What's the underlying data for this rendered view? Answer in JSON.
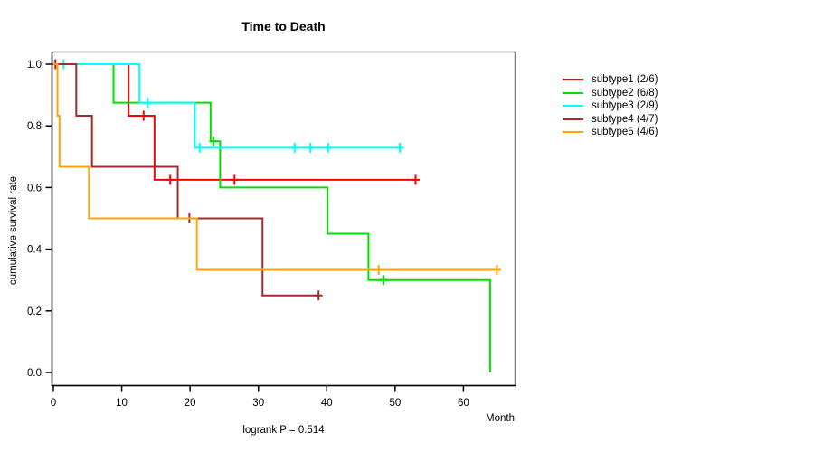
{
  "title": "Time to Death",
  "x_axis": {
    "label": "Month",
    "ticks": [
      "0",
      "10",
      "20",
      "30",
      "40",
      "50",
      "60"
    ]
  },
  "y_axis": {
    "label": "cumulative survival rate",
    "ticks": [
      "0.0",
      "0.2",
      "0.4",
      "0.6",
      "0.8",
      "1.0"
    ]
  },
  "footer_text": "logrank P = 0.514",
  "frame_color": "#7f7f7f",
  "axis_color": "#000000",
  "legend": [
    {
      "label": "subtype1 (2/6)",
      "color": "#ff0000"
    },
    {
      "label": "subtype2 (6/8)",
      "color": "#00e000"
    },
    {
      "label": "subtype3 (2/9)",
      "color": "#00ffff"
    },
    {
      "label": "subtype4 (4/7)",
      "color": "#a52a2a"
    },
    {
      "label": "subtype5 (4/6)",
      "color": "#ffa500"
    }
  ],
  "chart_data": {
    "type": "line",
    "subtype": "kaplan-meier-step",
    "title": "Time to Death",
    "xlabel": "Month",
    "ylabel": "cumulative survival rate",
    "xlim": [
      0,
      67.5
    ],
    "ylim": [
      0.0,
      1.04
    ],
    "x_ticks": [
      0,
      10,
      20,
      30,
      40,
      50,
      60
    ],
    "y_ticks": [
      0.0,
      0.2,
      0.4,
      0.6,
      0.8,
      1.0
    ],
    "grid": false,
    "legend_position": "right-outside",
    "annotation": "logrank P = 0.514",
    "series": [
      {
        "name": "subtype1 (2/6)",
        "color": "#ff0000",
        "events_total": "2/6",
        "steps": [
          [
            0,
            1.0
          ],
          [
            11.0,
            0.833
          ],
          [
            14.8,
            0.625
          ]
        ],
        "end": 53.0,
        "censored": [
          [
            13.2,
            0.833
          ],
          [
            17.1,
            0.625
          ],
          [
            26.5,
            0.625
          ],
          [
            53.0,
            0.625
          ]
        ]
      },
      {
        "name": "subtype2 (6/8)",
        "color": "#00e000",
        "events_total": "6/8",
        "steps": [
          [
            0,
            1.0
          ],
          [
            8.8,
            0.875
          ],
          [
            23.0,
            0.75
          ],
          [
            24.4,
            0.6
          ],
          [
            40.1,
            0.45
          ],
          [
            46.1,
            0.3
          ],
          [
            63.9,
            0.0
          ]
        ],
        "end": 63.9,
        "censored": [
          [
            23.4,
            0.75
          ],
          [
            48.3,
            0.3
          ]
        ]
      },
      {
        "name": "subtype3 (2/9)",
        "color": "#00ffff",
        "events_total": "2/9",
        "steps": [
          [
            0,
            1.0
          ],
          [
            12.6,
            0.875
          ],
          [
            20.7,
            0.729
          ]
        ],
        "end": 50.7,
        "censored": [
          [
            1.5,
            1.0
          ],
          [
            13.8,
            0.875
          ],
          [
            21.4,
            0.729
          ],
          [
            35.3,
            0.729
          ],
          [
            37.6,
            0.729
          ],
          [
            40.2,
            0.729
          ],
          [
            50.7,
            0.729
          ]
        ]
      },
      {
        "name": "subtype4 (4/7)",
        "color": "#a52a2a",
        "events_total": "4/7",
        "steps": [
          [
            0,
            1.0
          ],
          [
            3.35,
            0.833
          ],
          [
            5.65,
            0.667
          ],
          [
            18.2,
            0.5
          ],
          [
            30.6,
            0.25
          ]
        ],
        "end": 38.8,
        "censored": [
          [
            0.3,
            1.0
          ],
          [
            19.9,
            0.5
          ],
          [
            38.8,
            0.25
          ]
        ]
      },
      {
        "name": "subtype5 (4/6)",
        "color": "#ffa500",
        "events_total": "4/6",
        "steps": [
          [
            0,
            1.0
          ],
          [
            0.6,
            0.833
          ],
          [
            0.9,
            0.667
          ],
          [
            5.2,
            0.5
          ],
          [
            21.0,
            0.333
          ]
        ],
        "end": 64.9,
        "censored": [
          [
            47.6,
            0.333
          ],
          [
            64.9,
            0.333
          ]
        ]
      }
    ]
  }
}
